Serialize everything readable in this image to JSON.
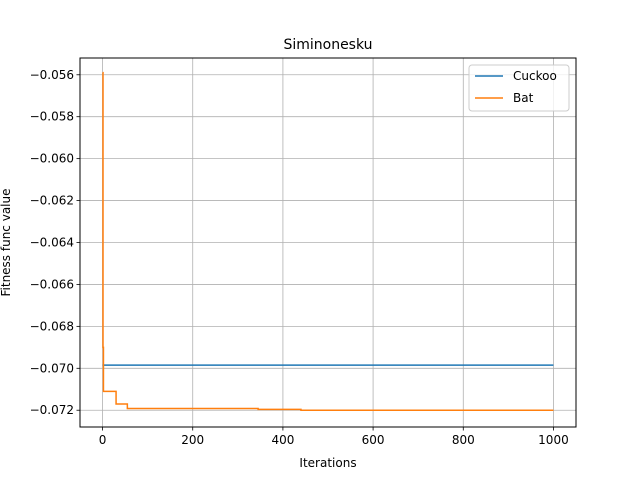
{
  "chart_data": {
    "type": "line",
    "title": "Siminonesku",
    "xlabel": "Iterations",
    "ylabel": "Fitness func value",
    "xlim": [
      -50,
      1050
    ],
    "ylim": [
      -0.0728,
      -0.0552
    ],
    "xticks": [
      0,
      200,
      400,
      600,
      800,
      1000
    ],
    "xtick_labels": [
      "0",
      "200",
      "400",
      "600",
      "800",
      "1000"
    ],
    "yticks": [
      -0.056,
      -0.058,
      -0.06,
      -0.062,
      -0.064,
      -0.066,
      -0.068,
      -0.07,
      -0.072
    ],
    "ytick_labels": [
      "−0.056",
      "−0.058",
      "−0.060",
      "−0.062",
      "−0.064",
      "−0.066",
      "−0.068",
      "−0.070",
      "−0.072"
    ],
    "grid": true,
    "legend_position": "top-right",
    "series": [
      {
        "name": "Cuckoo",
        "color": "#1f77b4",
        "x": [
          0,
          1000
        ],
        "y": [
          -0.06985,
          -0.06985
        ],
        "step": true
      },
      {
        "name": "Bat",
        "color": "#ff7f0e",
        "x": [
          0,
          1,
          2,
          25,
          30,
          50,
          55,
          340,
          345,
          430,
          440,
          1000
        ],
        "y": [
          -0.0559,
          -0.069,
          -0.0711,
          -0.0711,
          -0.0717,
          -0.0717,
          -0.07192,
          -0.07192,
          -0.07196,
          -0.07196,
          -0.072,
          -0.072
        ],
        "step": true
      }
    ]
  }
}
